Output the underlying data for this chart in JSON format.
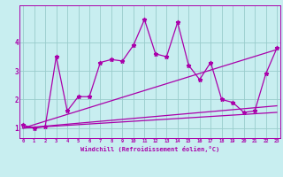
{
  "title": "",
  "xlabel": "Windchill (Refroidissement éolien,°C)",
  "ylabel": "",
  "background_color": "#c8eef0",
  "line_color": "#aa00aa",
  "grid_color": "#99cccc",
  "x_ticks": [
    0,
    1,
    2,
    3,
    4,
    5,
    6,
    7,
    8,
    9,
    10,
    11,
    12,
    13,
    14,
    15,
    16,
    17,
    18,
    19,
    20,
    21,
    22,
    23
  ],
  "y_ticks": [
    1,
    2,
    3,
    4
  ],
  "xlim": [
    -0.3,
    23.3
  ],
  "ylim": [
    0.65,
    5.3
  ],
  "series": {
    "zigzag": {
      "x": [
        0,
        1,
        2,
        3,
        4,
        5,
        6,
        7,
        8,
        9,
        10,
        11,
        12,
        13,
        14,
        15,
        16,
        17,
        18,
        19,
        20,
        21,
        22,
        23
      ],
      "y": [
        1.1,
        1.0,
        1.05,
        3.5,
        1.6,
        2.1,
        2.1,
        3.3,
        3.4,
        3.35,
        3.9,
        4.8,
        3.6,
        3.5,
        4.7,
        3.2,
        2.7,
        3.3,
        2.0,
        1.9,
        1.55,
        1.6,
        2.9,
        3.8
      ]
    },
    "lower_line1": {
      "x": [
        0,
        23
      ],
      "y": [
        1.0,
        1.55
      ]
    },
    "lower_line2": {
      "x": [
        0,
        23
      ],
      "y": [
        1.0,
        1.78
      ]
    },
    "upper_line": {
      "x": [
        0,
        23
      ],
      "y": [
        1.0,
        3.75
      ]
    }
  }
}
